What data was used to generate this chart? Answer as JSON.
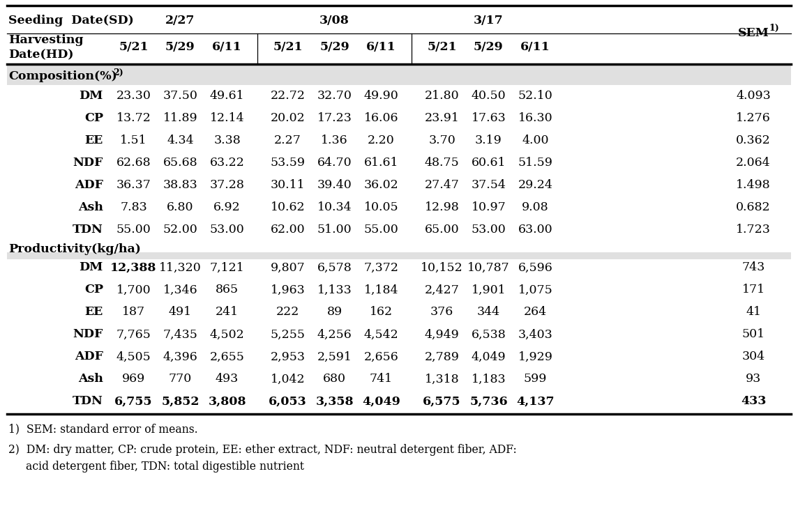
{
  "seeding_dates": [
    "2/27",
    "3/08",
    "3/17"
  ],
  "harvesting_dates_label": "Harvesting\nDate(HD)",
  "seeding_label": "Seeding  Date(SD)",
  "sem_label": "SEM",
  "hd_cols": [
    "5/21",
    "5/29",
    "6/11",
    "5/21",
    "5/29",
    "6/11",
    "5/21",
    "5/29",
    "6/11"
  ],
  "composition_section": "Composition(%)",
  "productivity_section": "Productivity(kg/ha)",
  "composition_rows": [
    {
      "name": "DM",
      "values": [
        "23.30",
        "37.50",
        "49.61",
        "22.72",
        "32.70",
        "49.90",
        "21.80",
        "40.50",
        "52.10"
      ],
      "sem": "4.093"
    },
    {
      "name": "CP",
      "values": [
        "13.72",
        "11.89",
        "12.14",
        "20.02",
        "17.23",
        "16.06",
        "23.91",
        "17.63",
        "16.30"
      ],
      "sem": "1.276"
    },
    {
      "name": "EE",
      "values": [
        "1.51",
        "4.34",
        "3.38",
        "2.27",
        "1.36",
        "2.20",
        "3.70",
        "3.19",
        "4.00"
      ],
      "sem": "0.362"
    },
    {
      "name": "NDF",
      "values": [
        "62.68",
        "65.68",
        "63.22",
        "53.59",
        "64.70",
        "61.61",
        "48.75",
        "60.61",
        "51.59"
      ],
      "sem": "2.064"
    },
    {
      "name": "ADF",
      "values": [
        "36.37",
        "38.83",
        "37.28",
        "30.11",
        "39.40",
        "36.02",
        "27.47",
        "37.54",
        "29.24"
      ],
      "sem": "1.498"
    },
    {
      "name": "Ash",
      "values": [
        "7.83",
        "6.80",
        "6.92",
        "10.62",
        "10.34",
        "10.05",
        "12.98",
        "10.97",
        "9.08"
      ],
      "sem": "0.682"
    },
    {
      "name": "TDN",
      "values": [
        "55.00",
        "52.00",
        "53.00",
        "62.00",
        "51.00",
        "55.00",
        "65.00",
        "53.00",
        "63.00"
      ],
      "sem": "1.723"
    }
  ],
  "productivity_rows": [
    {
      "name": "DM",
      "values": [
        "12,388",
        "11,320",
        "7,121",
        "9,807",
        "6,578",
        "7,372",
        "10,152",
        "10,787",
        "6,596"
      ],
      "sem": "743",
      "bold_row": false,
      "bold_first": true
    },
    {
      "name": "CP",
      "values": [
        "1,700",
        "1,346",
        "865",
        "1,963",
        "1,133",
        "1,184",
        "2,427",
        "1,901",
        "1,075"
      ],
      "sem": "171",
      "bold_row": false,
      "bold_first": false
    },
    {
      "name": "EE",
      "values": [
        "187",
        "491",
        "241",
        "222",
        "89",
        "162",
        "376",
        "344",
        "264"
      ],
      "sem": "41",
      "bold_row": false,
      "bold_first": false
    },
    {
      "name": "NDF",
      "values": [
        "7,765",
        "7,435",
        "4,502",
        "5,255",
        "4,256",
        "4,542",
        "4,949",
        "6,538",
        "3,403"
      ],
      "sem": "501",
      "bold_row": false,
      "bold_first": false
    },
    {
      "name": "ADF",
      "values": [
        "4,505",
        "4,396",
        "2,655",
        "2,953",
        "2,591",
        "2,656",
        "2,789",
        "4,049",
        "1,929"
      ],
      "sem": "304",
      "bold_row": false,
      "bold_first": false
    },
    {
      "name": "Ash",
      "values": [
        "969",
        "770",
        "493",
        "1,042",
        "680",
        "741",
        "1,318",
        "1,183",
        "599"
      ],
      "sem": "93",
      "bold_row": false,
      "bold_first": false
    },
    {
      "name": "TDN",
      "values": [
        "6,755",
        "5,852",
        "3,808",
        "6,053",
        "3,358",
        "4,049",
        "6,575",
        "5,736",
        "4,137"
      ],
      "sem": "433",
      "bold_row": true,
      "bold_first": true
    }
  ],
  "footnote1": "1)  SEM: standard error of means.",
  "footnote2a": "2)  DM: dry matter, CP: crude protein, EE: ether extract, NDF: neutral detergent fiber, ADF:",
  "footnote2b": "     acid detergent fiber, TDN: total digestible nutrient",
  "font_size": 12.5,
  "font_family": "DejaVu Serif"
}
